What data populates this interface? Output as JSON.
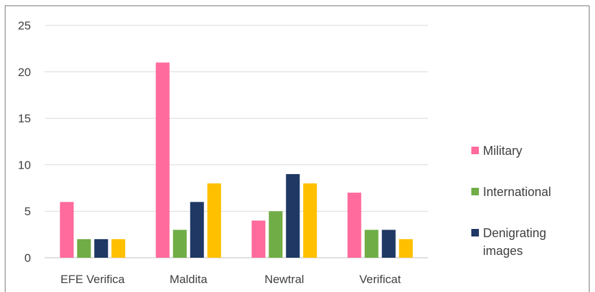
{
  "chart_data": {
    "type": "bar",
    "title": "",
    "xlabel": "",
    "ylabel": "",
    "categories": [
      "EFE Verifica",
      "Maldita",
      "Newtral",
      "Verificat"
    ],
    "series": [
      {
        "name": "Military",
        "color": "#ff6b9c",
        "values": [
          6,
          21,
          4,
          7
        ]
      },
      {
        "name": "International",
        "color": "#70ad47",
        "values": [
          2,
          3,
          5,
          3
        ]
      },
      {
        "name": "Denigrating images",
        "color": "#1f3864",
        "values": [
          2,
          6,
          9,
          3
        ]
      },
      {
        "name": "",
        "color": "#ffc000",
        "values": [
          2,
          8,
          8,
          2
        ]
      }
    ],
    "ylim": [
      0,
      25
    ],
    "yticks": [
      0,
      5,
      10,
      15,
      20,
      25
    ],
    "grid": true,
    "legend_position": "right"
  }
}
